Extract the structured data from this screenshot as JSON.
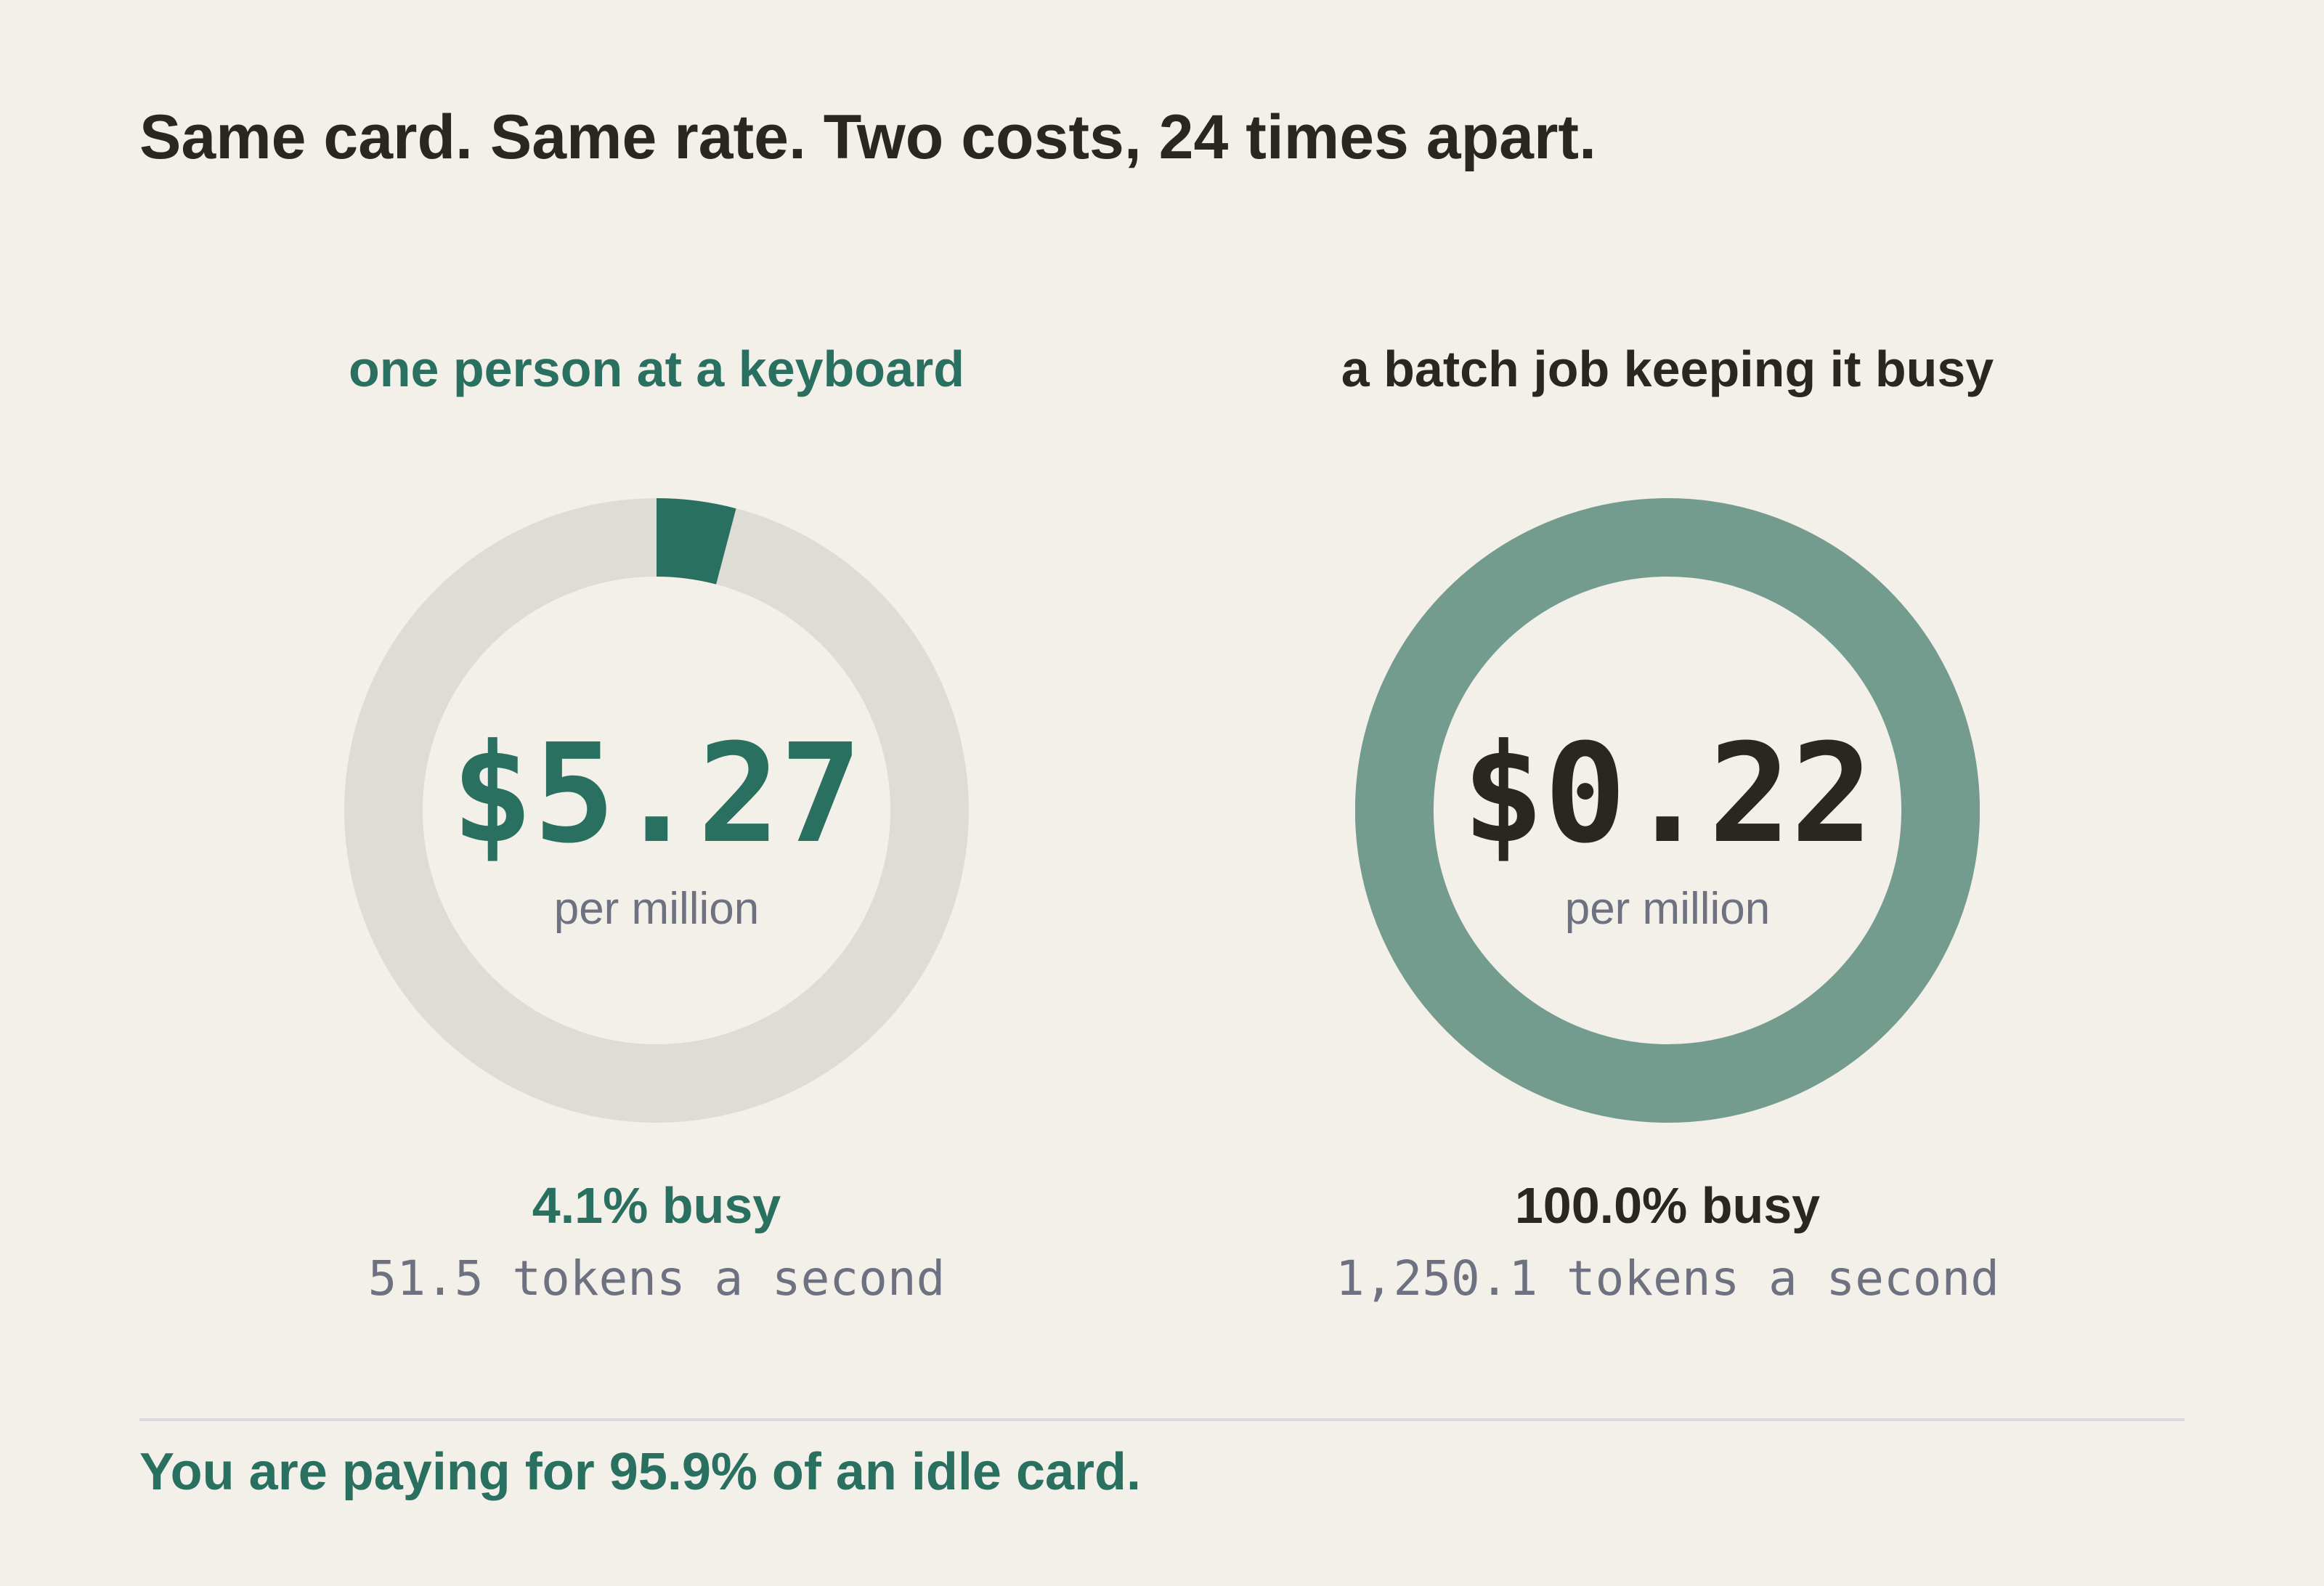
{
  "headline": "Same card. Same rate. Two costs, 24 times apart.",
  "colors": {
    "accent": "#2a7060",
    "accent_light": "#739c8f",
    "track": "#dfdbd5",
    "ink": "#2a2622",
    "muted": "#6d7180",
    "background": "#f3efe9"
  },
  "chart_data": [
    {
      "type": "donut",
      "title": "one person at a keyboard",
      "busy_fraction": 0.041,
      "center_value": "$5.27",
      "center_unit": "per million",
      "busy_label": "4.1% busy",
      "rate_label": "51.5 tokens a second"
    },
    {
      "type": "donut",
      "title": "a batch job keeping it busy",
      "busy_fraction": 1.0,
      "center_value": "$0.22",
      "center_unit": "per million",
      "busy_label": "100.0% busy",
      "rate_label": "1,250.1 tokens a second"
    }
  ],
  "footer": "You are paying for 95.9% of an idle card."
}
